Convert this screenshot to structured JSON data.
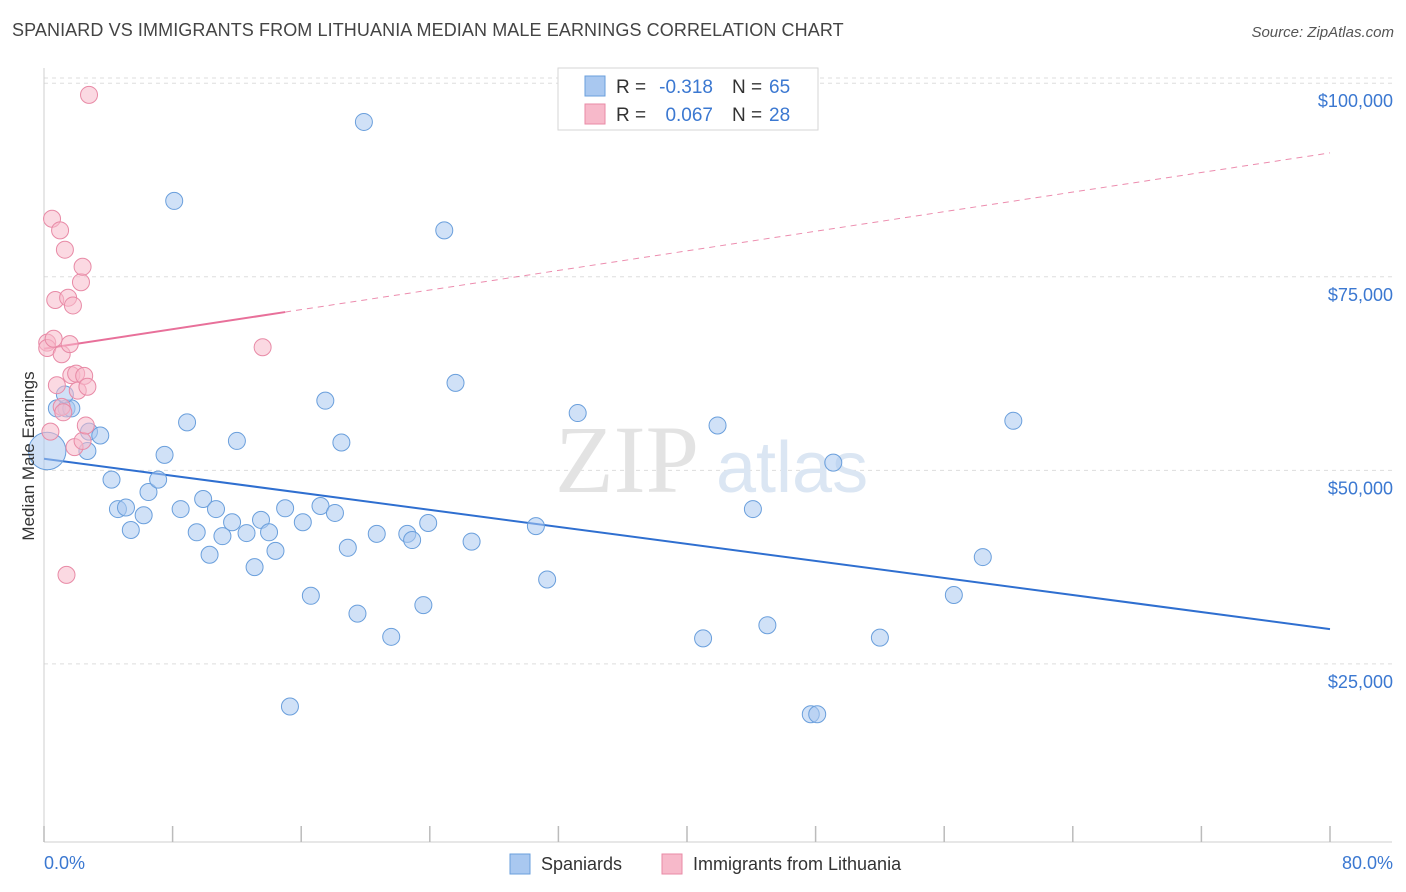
{
  "title": "SPANIARD VS IMMIGRANTS FROM LITHUANIA MEDIAN MALE EARNINGS CORRELATION CHART",
  "source": "Source: ZipAtlas.com",
  "watermark": {
    "zip": "ZIP",
    "atlas": "atlas"
  },
  "colors": {
    "blue": "#a9c8f0",
    "blue_stroke": "#6a9fdc",
    "blue_line": "#2f6fd0",
    "pink": "#f7b9ca",
    "pink_stroke": "#e88aa6",
    "pink_line": "#e8709a",
    "axis_text": "#3b78d1",
    "grid": "#dddddd"
  },
  "legend": {
    "r_label": "R =",
    "n_label": "N =",
    "rows": [
      {
        "r": "-0.318",
        "n": "65",
        "color": "blue"
      },
      {
        "r": "0.067",
        "n": "28",
        "color": "pink"
      }
    ]
  },
  "bottom_legend": [
    {
      "label": "Spaniards",
      "color": "blue"
    },
    {
      "label": "Immigrants from Lithuania",
      "color": "pink"
    }
  ],
  "chart_data": {
    "type": "scatter",
    "title": "SPANIARD VS IMMIGRANTS FROM LITHUANIA MEDIAN MALE EARNINGS CORRELATION CHART",
    "xlabel": "",
    "ylabel": "Median Male Earnings",
    "xlim": [
      0,
      80
    ],
    "ylim": [
      2000,
      103000
    ],
    "x_tick_labels": {
      "left": "0.0%",
      "right": "80.0%"
    },
    "y_ticks": [
      {
        "value": 25000,
        "label": "$25,000"
      },
      {
        "value": 50000,
        "label": "$50,000"
      },
      {
        "value": 75000,
        "label": "$75,000"
      },
      {
        "value": 100000,
        "label": "$100,000"
      }
    ],
    "series": [
      {
        "name": "Spaniards",
        "color": "blue",
        "trend": {
          "x0": 0,
          "y0": 51500,
          "x1": 80,
          "y1": 29500,
          "dashed_from": null
        },
        "points": [
          [
            0.2,
            52500,
            2.2
          ],
          [
            0.8,
            58000,
            1
          ],
          [
            1.4,
            58000,
            1
          ],
          [
            1.7,
            58000,
            1
          ],
          [
            1.3,
            59800,
            1
          ],
          [
            2.8,
            55000,
            1
          ],
          [
            3.5,
            54500,
            1
          ],
          [
            2.7,
            52500,
            1
          ],
          [
            4.2,
            48800,
            1
          ],
          [
            4.6,
            45000,
            1
          ],
          [
            5.1,
            45200,
            1
          ],
          [
            5.4,
            42300,
            1
          ],
          [
            6.2,
            44200,
            1
          ],
          [
            6.5,
            47200,
            1
          ],
          [
            7.1,
            48800,
            1
          ],
          [
            7.5,
            52000,
            1
          ],
          [
            8.1,
            84800,
            1
          ],
          [
            8.5,
            45000,
            1
          ],
          [
            8.9,
            56200,
            1
          ],
          [
            9.5,
            42000,
            1
          ],
          [
            9.9,
            46300,
            1
          ],
          [
            10.3,
            39100,
            1
          ],
          [
            10.7,
            45000,
            1
          ],
          [
            11.1,
            41500,
            1
          ],
          [
            11.7,
            43300,
            1
          ],
          [
            12.0,
            53800,
            1
          ],
          [
            12.6,
            41900,
            1
          ],
          [
            13.1,
            37500,
            1
          ],
          [
            13.5,
            43600,
            1
          ],
          [
            14.0,
            42000,
            1
          ],
          [
            14.4,
            39600,
            1
          ],
          [
            15.0,
            45100,
            1
          ],
          [
            15.3,
            19500,
            1
          ],
          [
            16.1,
            43300,
            1
          ],
          [
            16.6,
            33800,
            1
          ],
          [
            17.2,
            45400,
            1
          ],
          [
            17.5,
            59000,
            1
          ],
          [
            18.1,
            44500,
            1
          ],
          [
            18.5,
            53600,
            1
          ],
          [
            18.9,
            40000,
            1
          ],
          [
            19.5,
            31500,
            1
          ],
          [
            19.9,
            95000,
            1
          ],
          [
            20.7,
            41800,
            1
          ],
          [
            21.6,
            28500,
            1
          ],
          [
            22.6,
            41800,
            1
          ],
          [
            22.9,
            41000,
            1
          ],
          [
            23.6,
            32600,
            1
          ],
          [
            23.9,
            43200,
            1
          ],
          [
            24.9,
            81000,
            1
          ],
          [
            25.6,
            61300,
            1
          ],
          [
            26.6,
            40800,
            1
          ],
          [
            30.6,
            42800,
            1
          ],
          [
            31.3,
            35900,
            1
          ],
          [
            33.2,
            57400,
            1
          ],
          [
            41.0,
            28300,
            1
          ],
          [
            41.9,
            55800,
            1
          ],
          [
            44.1,
            45000,
            1
          ],
          [
            45.0,
            30000,
            1
          ],
          [
            47.7,
            18500,
            1
          ],
          [
            48.1,
            18500,
            1
          ],
          [
            49.1,
            51000,
            1
          ],
          [
            52.0,
            28400,
            1
          ],
          [
            56.6,
            33900,
            1
          ],
          [
            58.4,
            38800,
            1
          ],
          [
            60.3,
            56400,
            1
          ]
        ]
      },
      {
        "name": "Immigrants from Lithuania",
        "color": "pink",
        "trend": {
          "x0": 0,
          "y0": 65700,
          "x1": 80,
          "y1": 91000,
          "solid_until": 15
        },
        "points": [
          [
            0.2,
            66500,
            1
          ],
          [
            0.2,
            65800,
            1
          ],
          [
            0.4,
            55000,
            1
          ],
          [
            0.5,
            82500,
            1
          ],
          [
            0.6,
            67000,
            1
          ],
          [
            0.7,
            72000,
            1
          ],
          [
            0.8,
            61000,
            1
          ],
          [
            1.0,
            81000,
            1
          ],
          [
            1.1,
            58200,
            1
          ],
          [
            1.1,
            65000,
            1
          ],
          [
            1.2,
            57500,
            1
          ],
          [
            1.3,
            78500,
            1
          ],
          [
            1.4,
            36500,
            1
          ],
          [
            1.5,
            72300,
            1
          ],
          [
            1.6,
            66300,
            1
          ],
          [
            1.7,
            62300,
            1
          ],
          [
            1.8,
            71300,
            1
          ],
          [
            1.9,
            53000,
            1
          ],
          [
            2.0,
            62500,
            1
          ],
          [
            2.1,
            60300,
            1
          ],
          [
            2.3,
            74300,
            1
          ],
          [
            2.4,
            76300,
            1
          ],
          [
            2.4,
            53800,
            1
          ],
          [
            2.5,
            62200,
            1
          ],
          [
            2.6,
            55800,
            1
          ],
          [
            2.7,
            60800,
            1
          ],
          [
            2.8,
            98500,
            1
          ],
          [
            13.6,
            65900,
            1
          ]
        ]
      }
    ]
  }
}
